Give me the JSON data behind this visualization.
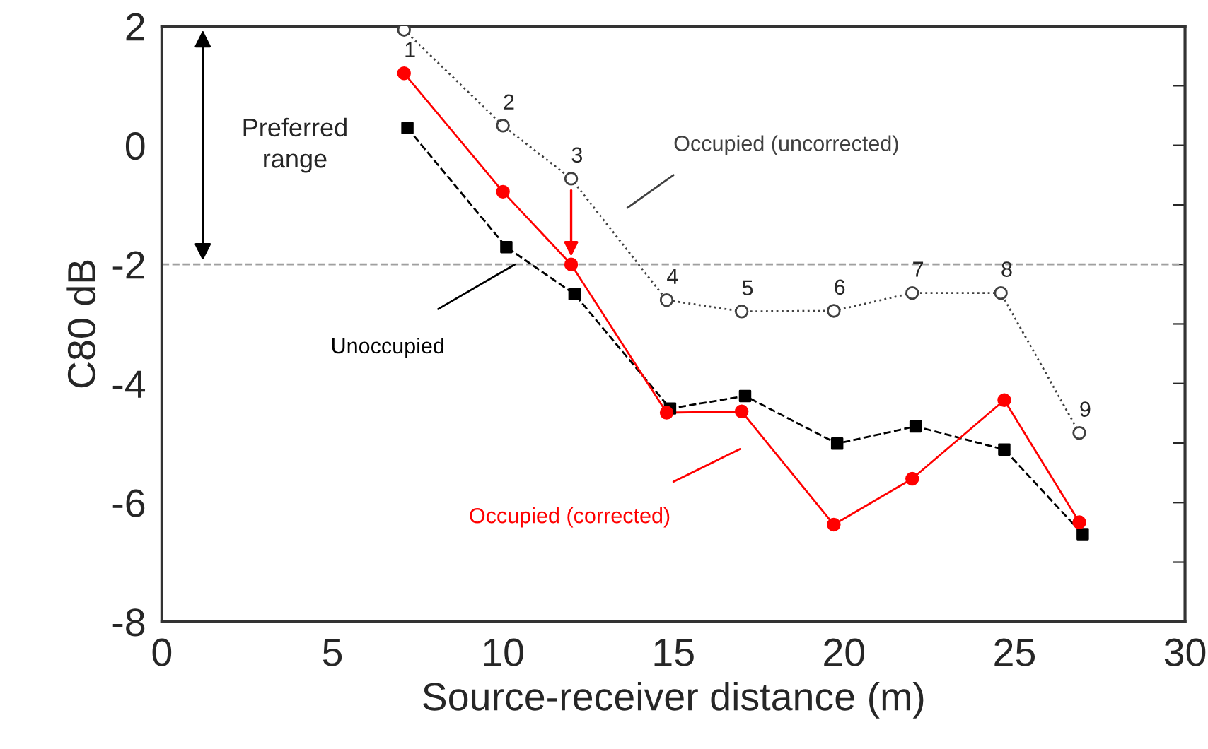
{
  "chart_data": {
    "type": "line",
    "xlabel": "Source-receiver distance (m)",
    "ylabel": "C80 dB",
    "xlim": [
      0,
      30
    ],
    "xticks": [
      0,
      5,
      10,
      15,
      20,
      25,
      30
    ],
    "ylim": [
      -8,
      2
    ],
    "yticks": [
      -8,
      {
        "value": -7,
        "label": null
      },
      -6,
      {
        "value": -5,
        "label": null
      },
      -4,
      {
        "value": -3,
        "label": null
      },
      -2,
      {
        "value": -1,
        "label": null
      },
      0,
      {
        "value": 1,
        "label": null
      },
      2
    ],
    "grid": false,
    "legend": false,
    "ref_lines": [
      {
        "axis": "y",
        "value": -2,
        "color": "#a0a0a0",
        "line_style": "dashed"
      }
    ],
    "series": [
      {
        "name": "Occupied (uncorrected)",
        "color": "#404040",
        "marker": "circle",
        "line_style": "dotted",
        "x": [
          7.1,
          10.0,
          12.0,
          14.8,
          17.0,
          19.7,
          22.0,
          24.6,
          26.9
        ],
        "values": [
          1.94,
          0.33,
          -0.56,
          -2.6,
          -2.79,
          -2.78,
          -2.48,
          -2.48,
          -4.83
        ]
      },
      {
        "name": "Unoccupied",
        "color": "#000000",
        "marker": "square",
        "line_style": "dashed",
        "x": [
          7.2,
          10.1,
          12.1,
          14.9,
          17.1,
          19.8,
          22.1,
          24.7,
          27.0
        ],
        "values": [
          0.29,
          -1.71,
          -2.5,
          -4.42,
          -4.21,
          -5.01,
          -4.72,
          -5.11,
          -6.53
        ]
      },
      {
        "name": "Occupied (corrected)",
        "color": "#ff0000",
        "marker": "circle",
        "line_style": "solid",
        "x": [
          7.1,
          10.0,
          12.0,
          14.8,
          17.0,
          19.7,
          22.0,
          24.7,
          26.9
        ],
        "values": [
          1.21,
          -0.78,
          -2.0,
          -4.49,
          -4.47,
          -6.37,
          -5.6,
          -4.28,
          -6.33
        ]
      }
    ],
    "annotations": [
      "Preferred range",
      {
        "text": "1",
        "x": 7.1,
        "y": 1.21
      },
      {
        "text": "2",
        "x": 10.0,
        "y": 0.33
      },
      {
        "text": "3",
        "x": 12.0,
        "y": -0.56
      },
      {
        "text": "4",
        "x": 14.8,
        "y": -2.6
      },
      {
        "text": "5",
        "x": 17.0,
        "y": -2.79
      },
      {
        "text": "6",
        "x": 19.7,
        "y": -2.78
      },
      {
        "text": "7",
        "x": 22.0,
        "y": -2.48
      },
      {
        "text": "8",
        "x": 24.6,
        "y": -2.48
      },
      {
        "text": "9",
        "x": 26.9,
        "y": -4.83
      }
    ]
  }
}
